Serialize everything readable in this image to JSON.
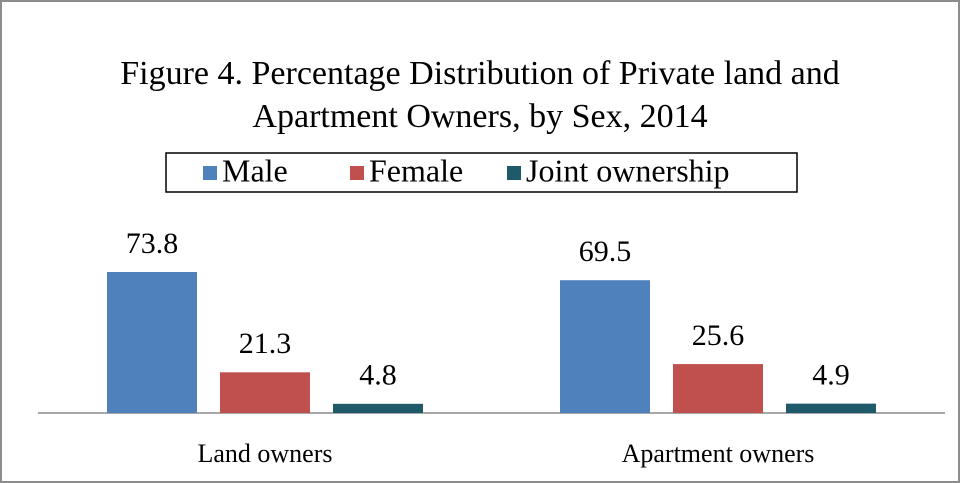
{
  "chart_data": {
    "type": "bar",
    "title": "Figure 4. Percentage Distribution of Private land and Apartment Owners, by Sex, 2014",
    "categories": [
      "Land owners",
      "Apartment owners"
    ],
    "series": [
      {
        "name": "Male",
        "color": "#4f81bd",
        "values": [
          73.8,
          69.5
        ]
      },
      {
        "name": "Female",
        "color": "#c0504d",
        "values": [
          21.3,
          25.6
        ]
      },
      {
        "name": "Joint ownership",
        "color": "#1f5a6a",
        "values": [
          4.8,
          4.9
        ]
      }
    ],
    "legend": "top"
  }
}
